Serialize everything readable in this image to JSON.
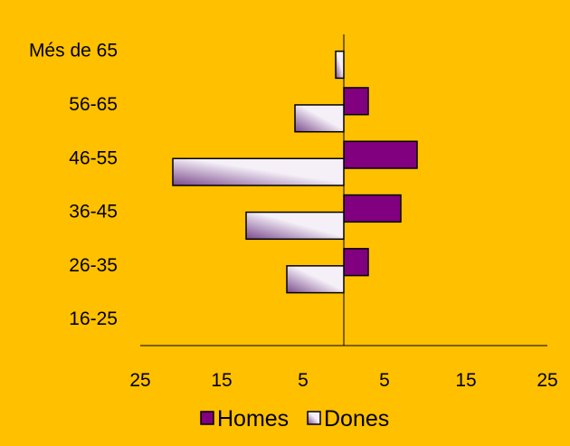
{
  "colors": {
    "background": "#FFC000",
    "homes": "#800080",
    "dones_light": "#F5F0F8",
    "dones_dark": "#7A4A8C",
    "border": "#000000"
  },
  "chart_data": {
    "type": "bar",
    "orientation": "horizontal",
    "layout": "population-pyramid",
    "categories": [
      "Més de 65",
      "56-65",
      "46-55",
      "36-45",
      "26-35",
      "16-25"
    ],
    "series": [
      {
        "name": "Homes",
        "side": "right",
        "values": [
          0,
          3,
          9,
          7,
          3,
          0
        ]
      },
      {
        "name": "Dones",
        "side": "left",
        "values": [
          1,
          6,
          21,
          12,
          7,
          0
        ]
      }
    ],
    "xlim": [
      -25,
      25
    ],
    "x_ticks": [
      {
        "value": -25,
        "label": "25"
      },
      {
        "value": -15,
        "label": "15"
      },
      {
        "value": -5,
        "label": "5"
      },
      {
        "value": 5,
        "label": "5"
      },
      {
        "value": 15,
        "label": "15"
      },
      {
        "value": 25,
        "label": "25"
      }
    ],
    "legend": {
      "position": "bottom",
      "entries": [
        "Homes",
        "Dones"
      ]
    },
    "grid": false,
    "title": "",
    "xlabel": "",
    "ylabel": ""
  }
}
